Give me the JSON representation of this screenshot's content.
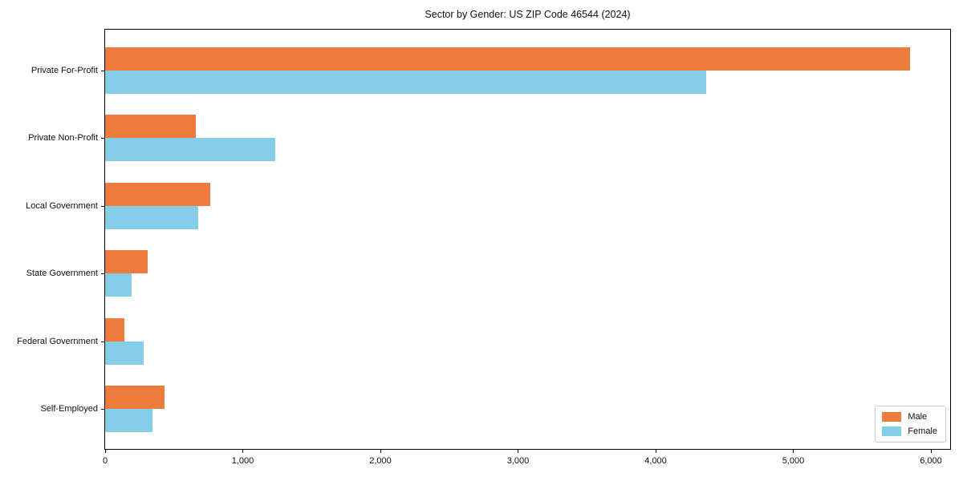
{
  "chart_data": {
    "type": "bar",
    "orientation": "horizontal",
    "title": "Sector by Gender: US ZIP Code 46544 (2024)",
    "categories": [
      "Private For-Profit",
      "Private Non-Profit",
      "Local Government",
      "State Government",
      "Federal Government",
      "Self-Employed"
    ],
    "series": [
      {
        "name": "Male",
        "color": "#ED7B3D",
        "values": [
          5850,
          660,
          765,
          310,
          140,
          430
        ]
      },
      {
        "name": "Female",
        "color": "#85CEE8",
        "values": [
          4370,
          1235,
          675,
          195,
          280,
          345
        ]
      }
    ],
    "xlabel": "",
    "ylabel": "",
    "xlim": [
      0,
      6140
    ],
    "xticks": [
      0,
      1000,
      2000,
      3000,
      4000,
      5000,
      6000
    ],
    "xtick_labels": [
      "0",
      "1,000",
      "2,000",
      "3,000",
      "4,000",
      "5,000",
      "6,000"
    ],
    "grid": false,
    "legend_position": "lower right"
  }
}
